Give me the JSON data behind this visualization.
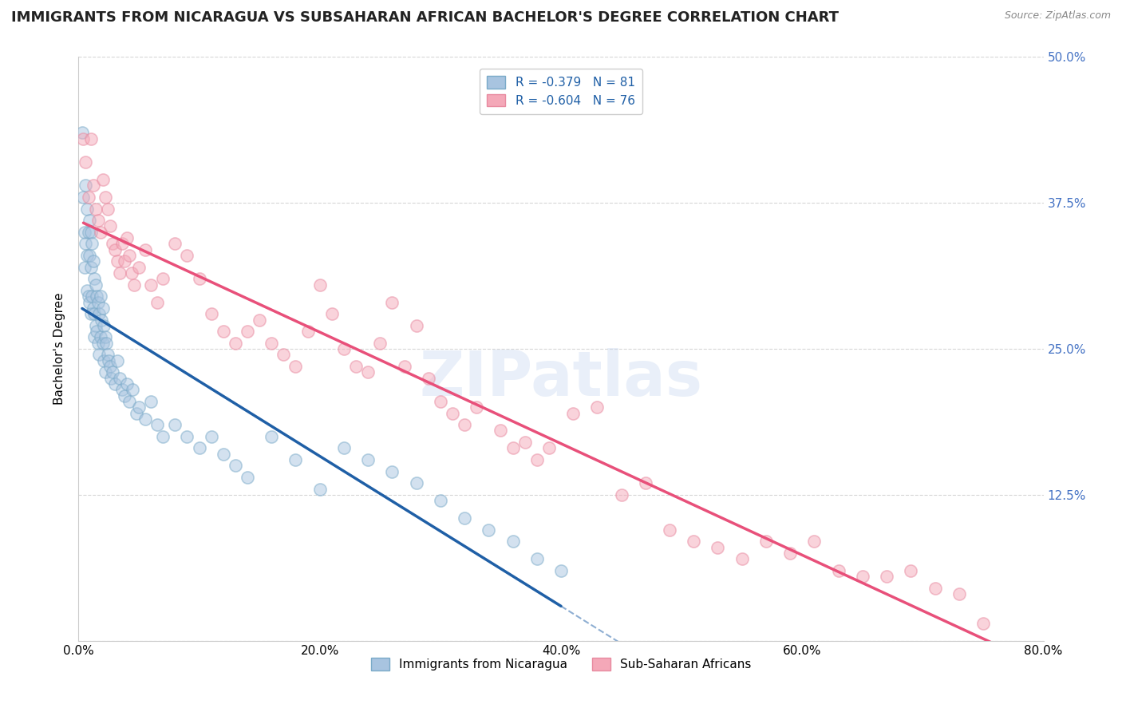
{
  "title": "IMMIGRANTS FROM NICARAGUA VS SUBSAHARAN AFRICAN BACHELOR'S DEGREE CORRELATION CHART",
  "source": "Source: ZipAtlas.com",
  "ylabel": "Bachelor's Degree",
  "watermark": "ZIPatlas",
  "series1_label": "Immigrants from Nicaragua",
  "series2_label": "Sub-Saharan Africans",
  "series1_color": "#a8c4e0",
  "series2_color": "#f4a8b8",
  "series1_edge_color": "#7aaac8",
  "series2_edge_color": "#e88aa0",
  "series1_line_color": "#1f5fa6",
  "series2_line_color": "#e8507a",
  "series1_R": -0.379,
  "series1_N": 81,
  "series2_R": -0.604,
  "series2_N": 76,
  "xlim": [
    0.0,
    0.8
  ],
  "ylim": [
    0.0,
    0.5
  ],
  "xticks": [
    0.0,
    0.2,
    0.4,
    0.6,
    0.8
  ],
  "xticklabels": [
    "0.0%",
    "20.0%",
    "40.0%",
    "60.0%",
    "80.0%"
  ],
  "yticks_left": [
    0.125,
    0.25,
    0.375,
    0.5
  ],
  "yticks_right": [
    0.125,
    0.25,
    0.375,
    0.5
  ],
  "right_ytick_color": "#4472c4",
  "background_color": "#ffffff",
  "grid_color": "#cccccc",
  "title_fontsize": 13,
  "axis_label_fontsize": 11,
  "tick_fontsize": 11,
  "legend_fontsize": 11,
  "scatter_size": 120,
  "scatter_alpha": 0.5,
  "series1_x": [
    0.003,
    0.004,
    0.005,
    0.005,
    0.006,
    0.006,
    0.007,
    0.007,
    0.007,
    0.008,
    0.008,
    0.009,
    0.009,
    0.009,
    0.01,
    0.01,
    0.01,
    0.011,
    0.011,
    0.012,
    0.012,
    0.013,
    0.013,
    0.013,
    0.014,
    0.014,
    0.015,
    0.015,
    0.016,
    0.016,
    0.017,
    0.017,
    0.018,
    0.018,
    0.019,
    0.02,
    0.02,
    0.021,
    0.021,
    0.022,
    0.022,
    0.023,
    0.024,
    0.025,
    0.026,
    0.027,
    0.028,
    0.03,
    0.032,
    0.034,
    0.036,
    0.038,
    0.04,
    0.042,
    0.045,
    0.048,
    0.05,
    0.055,
    0.06,
    0.065,
    0.07,
    0.08,
    0.09,
    0.1,
    0.11,
    0.12,
    0.13,
    0.14,
    0.16,
    0.18,
    0.2,
    0.22,
    0.24,
    0.26,
    0.28,
    0.3,
    0.32,
    0.34,
    0.36,
    0.38,
    0.4
  ],
  "series1_y": [
    0.435,
    0.38,
    0.35,
    0.32,
    0.39,
    0.34,
    0.37,
    0.33,
    0.3,
    0.35,
    0.295,
    0.36,
    0.33,
    0.29,
    0.35,
    0.32,
    0.28,
    0.34,
    0.295,
    0.325,
    0.285,
    0.31,
    0.28,
    0.26,
    0.305,
    0.27,
    0.295,
    0.265,
    0.29,
    0.255,
    0.28,
    0.245,
    0.295,
    0.26,
    0.275,
    0.285,
    0.255,
    0.27,
    0.24,
    0.26,
    0.23,
    0.255,
    0.245,
    0.24,
    0.235,
    0.225,
    0.23,
    0.22,
    0.24,
    0.225,
    0.215,
    0.21,
    0.22,
    0.205,
    0.215,
    0.195,
    0.2,
    0.19,
    0.205,
    0.185,
    0.175,
    0.185,
    0.175,
    0.165,
    0.175,
    0.16,
    0.15,
    0.14,
    0.175,
    0.155,
    0.13,
    0.165,
    0.155,
    0.145,
    0.135,
    0.12,
    0.105,
    0.095,
    0.085,
    0.07,
    0.06
  ],
  "series2_x": [
    0.004,
    0.006,
    0.008,
    0.01,
    0.012,
    0.014,
    0.016,
    0.018,
    0.02,
    0.022,
    0.024,
    0.026,
    0.028,
    0.03,
    0.032,
    0.034,
    0.036,
    0.038,
    0.04,
    0.042,
    0.044,
    0.046,
    0.05,
    0.055,
    0.06,
    0.065,
    0.07,
    0.08,
    0.09,
    0.1,
    0.11,
    0.12,
    0.13,
    0.14,
    0.15,
    0.16,
    0.17,
    0.18,
    0.19,
    0.2,
    0.21,
    0.22,
    0.23,
    0.24,
    0.25,
    0.26,
    0.27,
    0.28,
    0.29,
    0.3,
    0.31,
    0.32,
    0.33,
    0.35,
    0.36,
    0.37,
    0.38,
    0.39,
    0.41,
    0.43,
    0.45,
    0.47,
    0.49,
    0.51,
    0.53,
    0.55,
    0.57,
    0.59,
    0.61,
    0.63,
    0.65,
    0.67,
    0.69,
    0.71,
    0.73,
    0.75
  ],
  "series2_y": [
    0.43,
    0.41,
    0.38,
    0.43,
    0.39,
    0.37,
    0.36,
    0.35,
    0.395,
    0.38,
    0.37,
    0.355,
    0.34,
    0.335,
    0.325,
    0.315,
    0.34,
    0.325,
    0.345,
    0.33,
    0.315,
    0.305,
    0.32,
    0.335,
    0.305,
    0.29,
    0.31,
    0.34,
    0.33,
    0.31,
    0.28,
    0.265,
    0.255,
    0.265,
    0.275,
    0.255,
    0.245,
    0.235,
    0.265,
    0.305,
    0.28,
    0.25,
    0.235,
    0.23,
    0.255,
    0.29,
    0.235,
    0.27,
    0.225,
    0.205,
    0.195,
    0.185,
    0.2,
    0.18,
    0.165,
    0.17,
    0.155,
    0.165,
    0.195,
    0.2,
    0.125,
    0.135,
    0.095,
    0.085,
    0.08,
    0.07,
    0.085,
    0.075,
    0.085,
    0.06,
    0.055,
    0.055,
    0.06,
    0.045,
    0.04,
    0.015
  ]
}
